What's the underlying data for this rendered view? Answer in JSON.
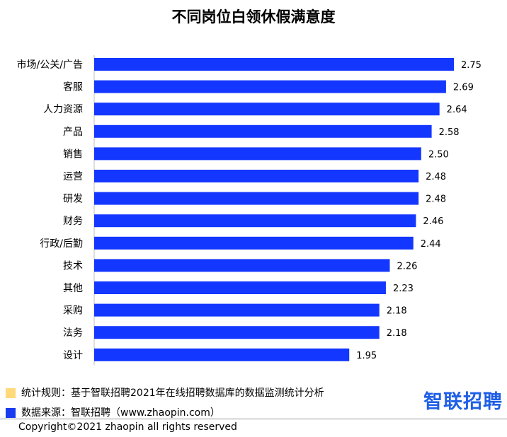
{
  "colors": {
    "bar": "#1437ff",
    "legend_rule": "#ffd97a",
    "legend_source": "#1a3cf0",
    "logo": "#1f5fe6"
  },
  "chart_data": {
    "type": "bar",
    "orientation": "horizontal",
    "title": "不同岗位白领休假满意度",
    "categories": [
      "市场/公关/广告",
      "客服",
      "人力资源",
      "产品",
      "销售",
      "运营",
      "研发",
      "财务",
      "行政/后勤",
      "技术",
      "其他",
      "采购",
      "法务",
      "设计"
    ],
    "values": [
      2.75,
      2.69,
      2.64,
      2.58,
      2.5,
      2.48,
      2.48,
      2.46,
      2.44,
      2.26,
      2.23,
      2.18,
      2.18,
      1.95
    ],
    "value_labels": [
      "2.75",
      "2.69",
      "2.64",
      "2.58",
      "2.50",
      "2.48",
      "2.48",
      "2.46",
      "2.44",
      "2.26",
      "2.23",
      "2.18",
      "2.18",
      "1.95"
    ],
    "xlim": [
      0,
      2.75
    ],
    "grid": false,
    "legend": false
  },
  "notes": {
    "rule": "统计规则：基于智联招聘2021年在线招聘数据库的数据监测统计分析",
    "source": "数据来源：智联招聘（www.zhaopin.com）"
  },
  "logo_text": "智联招聘",
  "copyright": "Copyright©2021 zhaopin all rights reserved"
}
